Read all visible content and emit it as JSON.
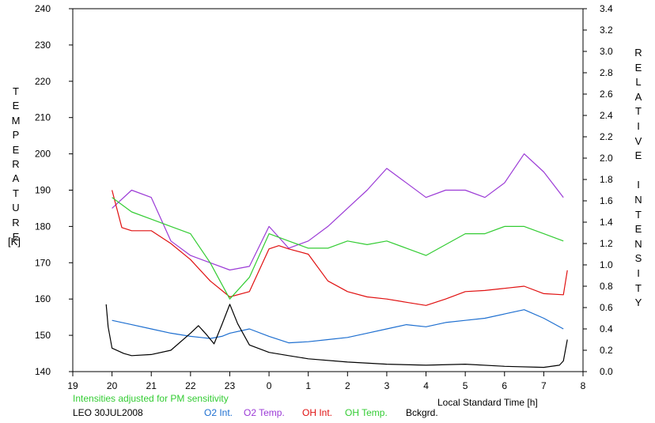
{
  "chart_data": {
    "type": "line",
    "left_axis": {
      "label": "TEMPERATURE",
      "unit": "[K]",
      "ylim": [
        140,
        240
      ],
      "ticks": [
        "140",
        "150",
        "160",
        "170",
        "180",
        "190",
        "200",
        "210",
        "220",
        "230",
        "240"
      ]
    },
    "right_axis": {
      "label": "RELATIVE INTENSITY",
      "ylim": [
        0,
        3.4
      ],
      "ticks": [
        "0.0",
        "0.2",
        "0.4",
        "0.6",
        "0.8",
        "1.0",
        "1.2",
        "1.4",
        "1.6",
        "1.8",
        "2.0",
        "2.2",
        "2.4",
        "2.6",
        "2.8",
        "3.0",
        "3.2",
        "3.4"
      ]
    },
    "x_axis": {
      "label": "Local Standard Time [h]",
      "xlim": [
        19,
        32
      ],
      "ticks": [
        "19",
        "20",
        "21",
        "22",
        "23",
        "0",
        "1",
        "2",
        "3",
        "4",
        "5",
        "6",
        "7",
        "8"
      ]
    },
    "note": "Intensities adjusted for PM sensitivity",
    "station": "LEO 30JUL2008",
    "series": [
      {
        "name": "O2 Int.",
        "color": "#1e6fd0",
        "axis": "right",
        "x": [
          20.0,
          20.5,
          21.0,
          21.5,
          22.0,
          22.5,
          22.8,
          23.0,
          23.5,
          24.0,
          24.5,
          25.0,
          25.5,
          26.0,
          26.5,
          27.0,
          27.5,
          28.0,
          28.5,
          29.0,
          29.5,
          30.0,
          30.5,
          31.0,
          31.5
        ],
        "y": [
          0.48,
          0.44,
          0.4,
          0.36,
          0.33,
          0.31,
          0.33,
          0.36,
          0.4,
          0.33,
          0.27,
          0.28,
          0.3,
          0.32,
          0.36,
          0.4,
          0.44,
          0.42,
          0.46,
          0.48,
          0.5,
          0.54,
          0.58,
          0.5,
          0.4
        ]
      },
      {
        "name": "O2 Temp.",
        "color": "#9b3ad6",
        "axis": "left",
        "x": [
          20.0,
          20.5,
          21.0,
          21.5,
          22.0,
          22.5,
          23.0,
          23.5,
          24.0,
          24.5,
          25.0,
          25.5,
          26.0,
          26.5,
          27.0,
          27.5,
          28.0,
          28.5,
          29.0,
          29.5,
          30.0,
          30.5,
          31.0,
          31.5
        ],
        "y": [
          185,
          190,
          188,
          176,
          172,
          170,
          168,
          169,
          180,
          174,
          176,
          180,
          185,
          190,
          196,
          192,
          188,
          190,
          190,
          188,
          192,
          200,
          195,
          188
        ]
      },
      {
        "name": "OH Int.",
        "color": "#e01010",
        "axis": "right",
        "x": [
          20.0,
          20.25,
          20.5,
          21.0,
          21.5,
          22.0,
          22.5,
          23.0,
          23.5,
          24.0,
          24.25,
          24.5,
          25.0,
          25.5,
          26.0,
          26.5,
          27.0,
          27.5,
          28.0,
          28.5,
          29.0,
          29.5,
          30.0,
          30.5,
          31.0,
          31.5,
          31.6
        ],
        "y": [
          1.7,
          1.35,
          1.32,
          1.32,
          1.2,
          1.05,
          0.85,
          0.7,
          0.75,
          1.15,
          1.18,
          1.15,
          1.1,
          0.85,
          0.75,
          0.7,
          0.68,
          0.65,
          0.62,
          0.68,
          0.75,
          0.76,
          0.78,
          0.8,
          0.73,
          0.72,
          0.95
        ]
      },
      {
        "name": "OH Temp.",
        "color": "#33cc33",
        "axis": "left",
        "x": [
          20.0,
          20.5,
          21.0,
          21.5,
          22.0,
          22.5,
          23.0,
          23.5,
          24.0,
          24.5,
          25.0,
          25.5,
          26.0,
          26.5,
          27.0,
          27.5,
          28.0,
          28.5,
          29.0,
          29.5,
          30.0,
          30.5,
          31.0,
          31.5
        ],
        "y": [
          188,
          184,
          182,
          180,
          178,
          170,
          160,
          166,
          178,
          176,
          174,
          174,
          176,
          175,
          176,
          174,
          172,
          175,
          178,
          178,
          180,
          180,
          178,
          176
        ]
      },
      {
        "name": "Bckgrd.",
        "color": "#000000",
        "axis": "right",
        "x": [
          19.85,
          19.9,
          20.0,
          20.3,
          20.5,
          21.0,
          21.5,
          22.0,
          22.2,
          22.4,
          22.6,
          22.8,
          23.0,
          23.2,
          23.5,
          24.0,
          24.5,
          25.0,
          26.0,
          27.0,
          28.0,
          29.0,
          30.0,
          31.0,
          31.4,
          31.5,
          31.6
        ],
        "y": [
          0.63,
          0.42,
          0.22,
          0.17,
          0.15,
          0.16,
          0.2,
          0.36,
          0.43,
          0.35,
          0.26,
          0.44,
          0.63,
          0.45,
          0.25,
          0.18,
          0.15,
          0.12,
          0.09,
          0.07,
          0.06,
          0.07,
          0.05,
          0.04,
          0.06,
          0.1,
          0.3
        ]
      }
    ]
  }
}
